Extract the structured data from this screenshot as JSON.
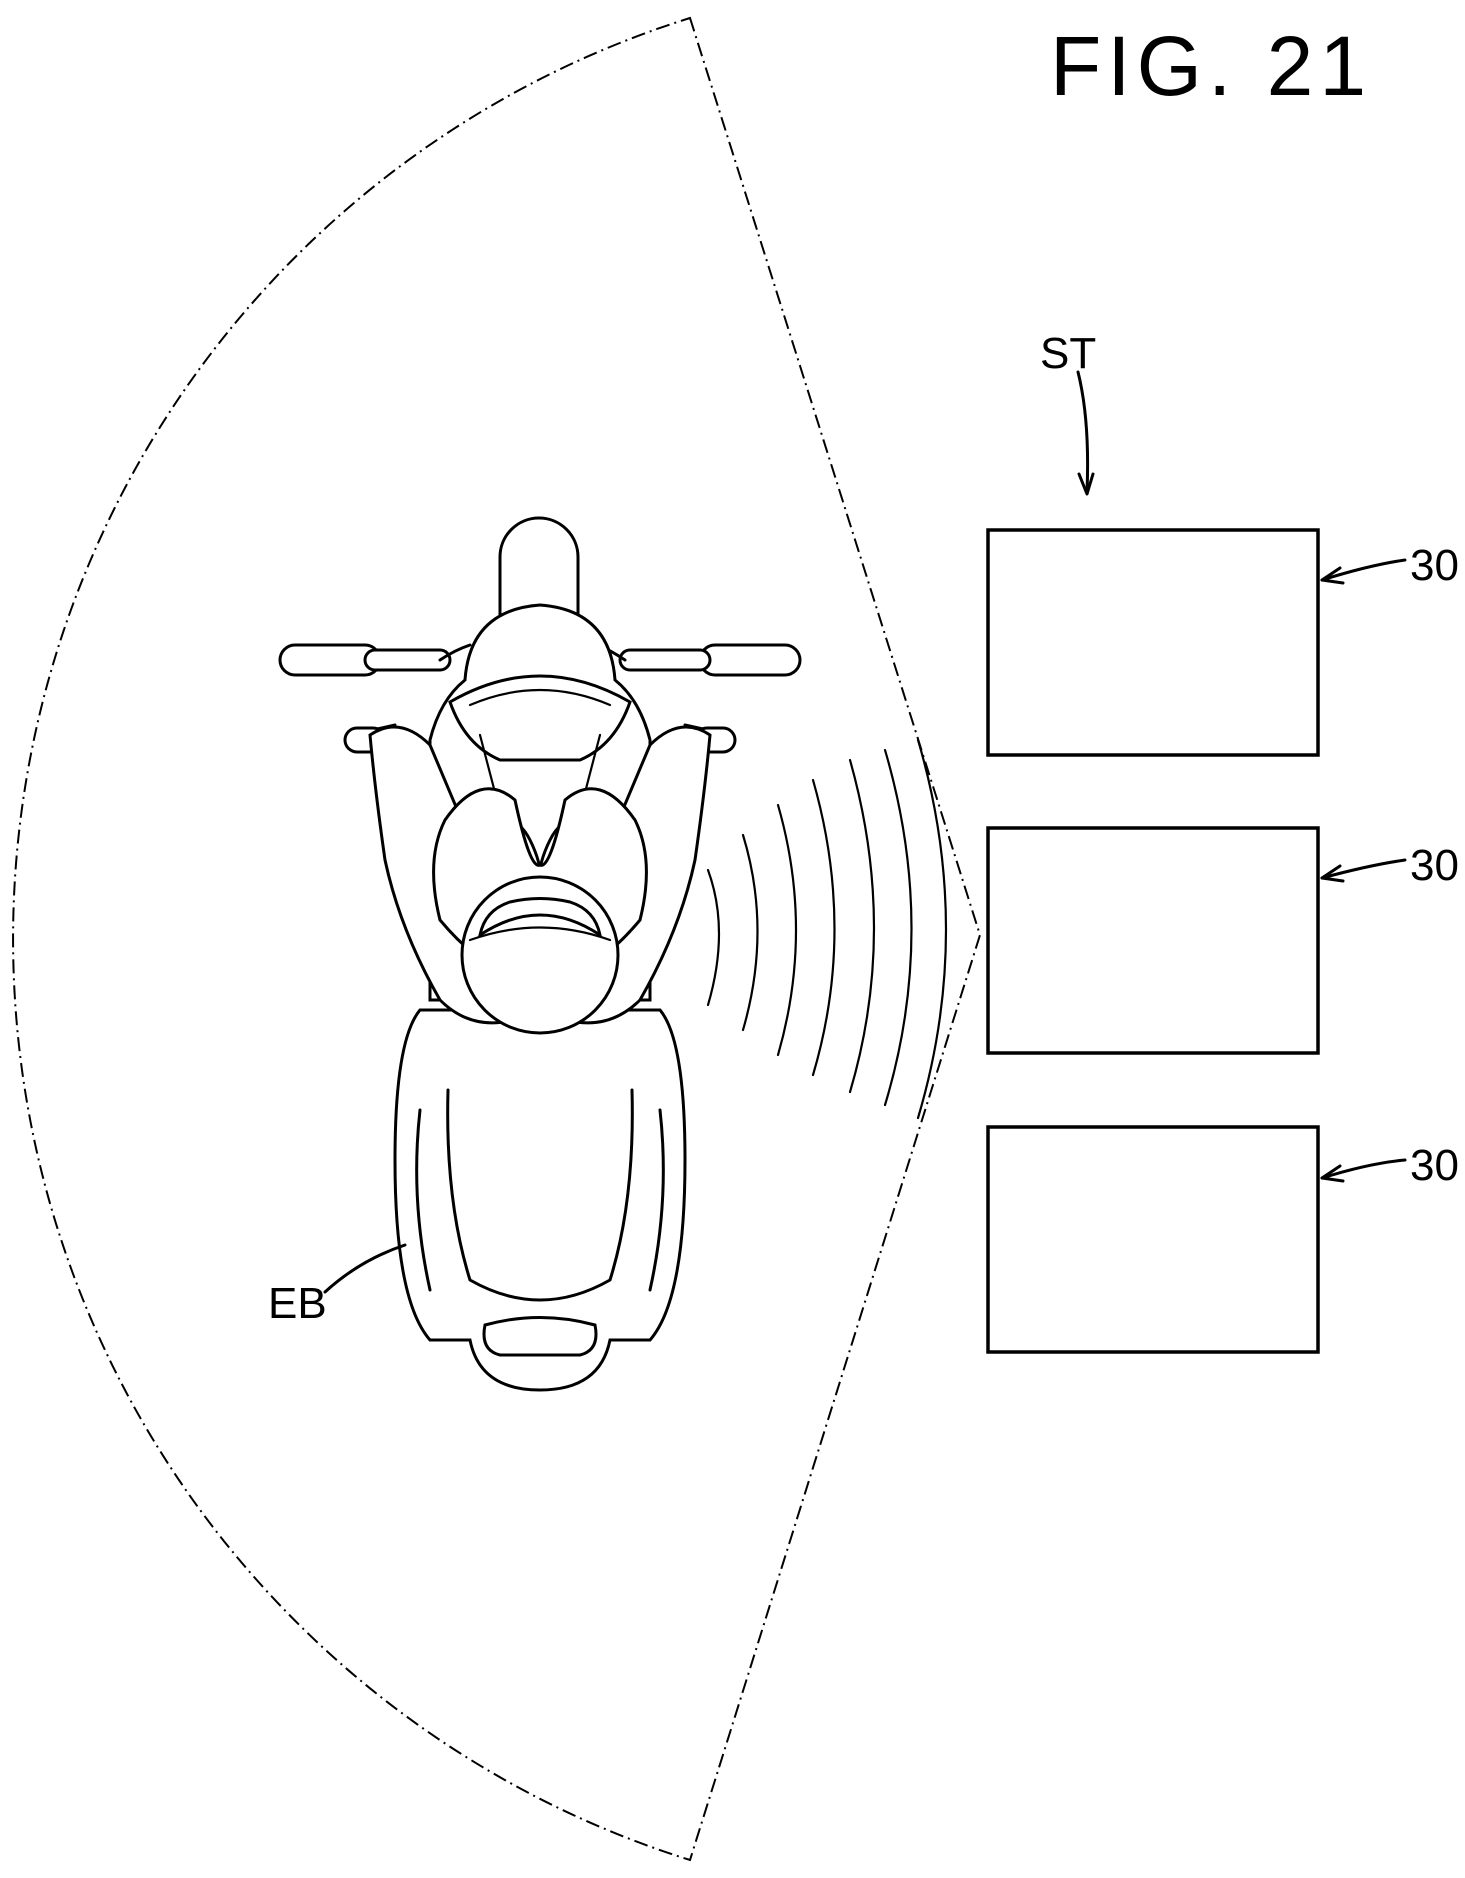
{
  "figure_label": "FIG. 21",
  "labels": {
    "station": "ST",
    "vehicle": "EB",
    "unit_top": "30",
    "unit_middle": "30",
    "unit_bottom": "30"
  }
}
